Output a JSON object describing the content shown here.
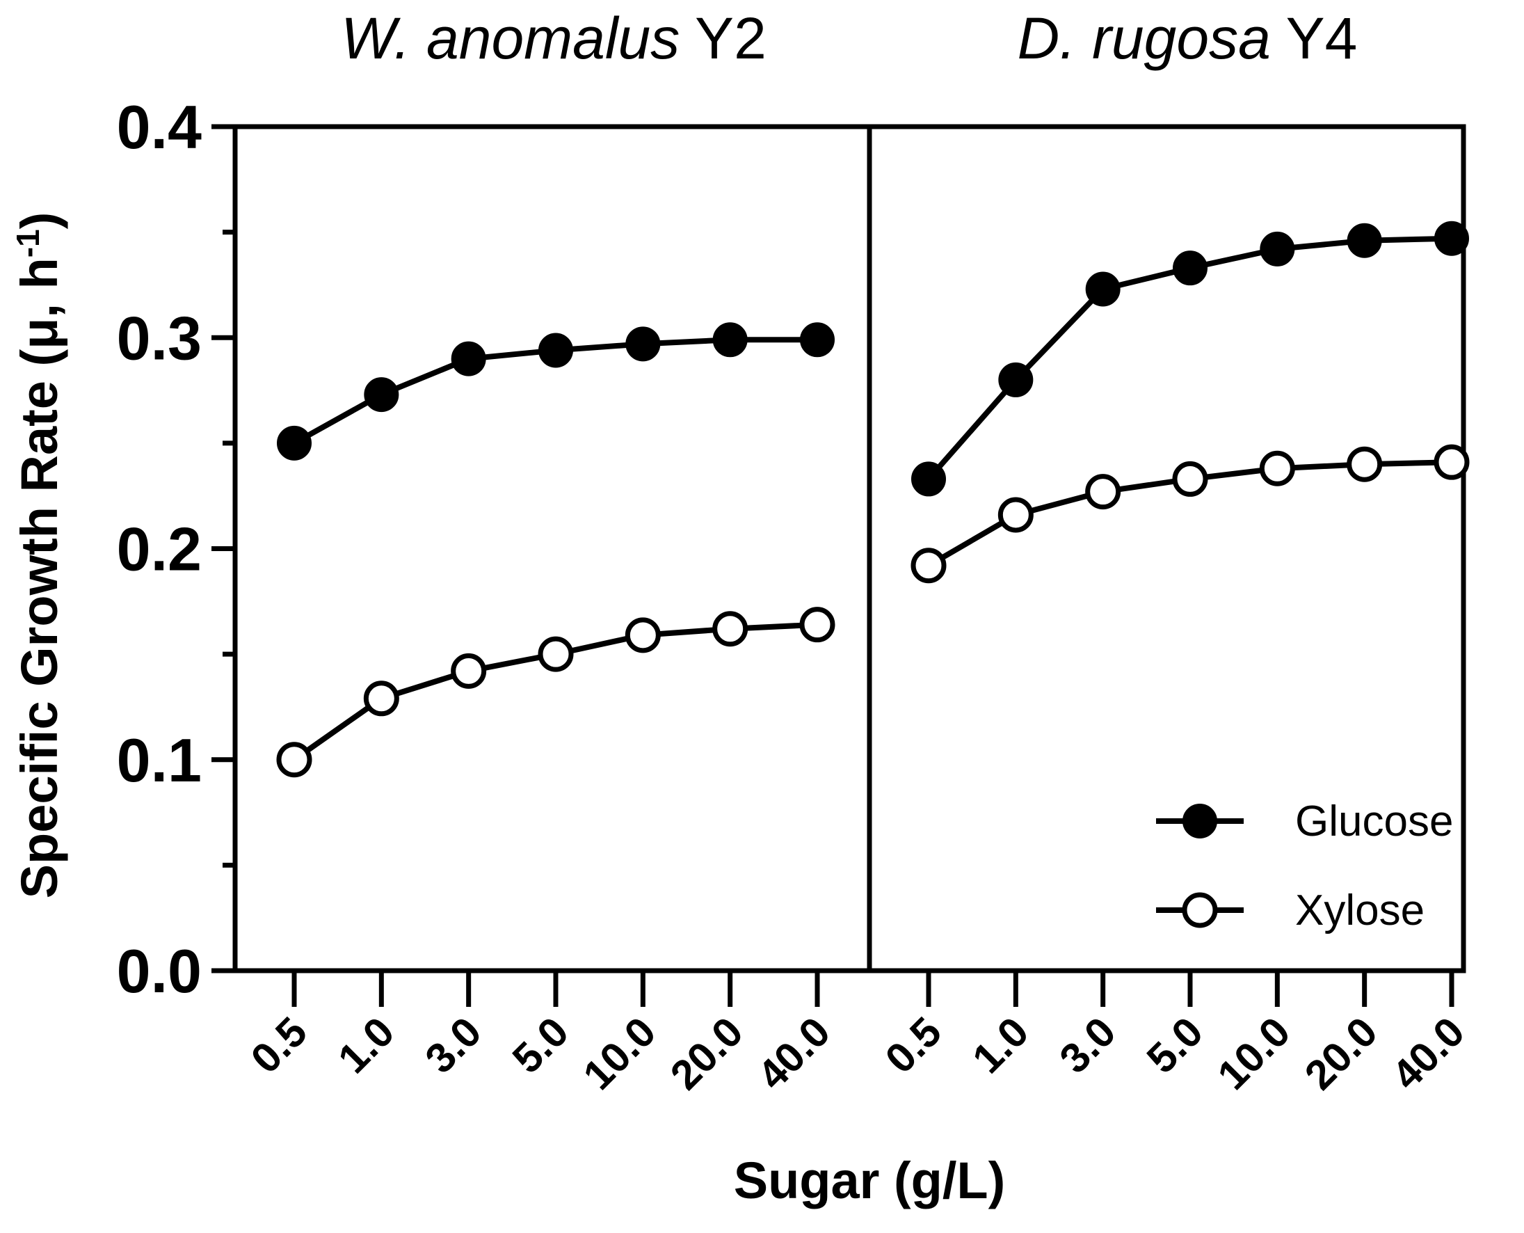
{
  "chart_data": {
    "type": "line",
    "ylabel": "Specific Growth Rate (μ, h",
    "ylabel_superscript": "-1",
    "ylabel_close": ")",
    "xlabel": "Sugar (g/L)",
    "ylim": [
      0.0,
      0.4
    ],
    "yticks": [
      0.0,
      0.1,
      0.2,
      0.3,
      0.4
    ],
    "ytick_labels": [
      "0.0",
      "0.1",
      "0.2",
      "0.3",
      "0.4"
    ],
    "categories": [
      "0.5",
      "1.0",
      "3.0",
      "5.0",
      "10.0",
      "20.0",
      "40.0"
    ],
    "legend": [
      {
        "name": "Glucose",
        "marker": "filled-circle"
      },
      {
        "name": "Xylose",
        "marker": "open-circle"
      }
    ],
    "legend_position": "bottom-right",
    "panels": [
      {
        "title_italic": "W. anomalus",
        "title_plain": " Y2",
        "series": [
          {
            "name": "Glucose",
            "values": [
              0.25,
              0.273,
              0.29,
              0.294,
              0.297,
              0.299,
              0.299
            ]
          },
          {
            "name": "Xylose",
            "values": [
              0.1,
              0.129,
              0.142,
              0.15,
              0.159,
              0.162,
              0.164
            ]
          }
        ]
      },
      {
        "title_italic": "D. rugosa",
        "title_plain": " Y4",
        "series": [
          {
            "name": "Glucose",
            "values": [
              0.233,
              0.28,
              0.323,
              0.333,
              0.342,
              0.346,
              0.347
            ]
          },
          {
            "name": "Xylose",
            "values": [
              0.192,
              0.216,
              0.227,
              0.233,
              0.238,
              0.24,
              0.241
            ]
          }
        ]
      }
    ]
  }
}
